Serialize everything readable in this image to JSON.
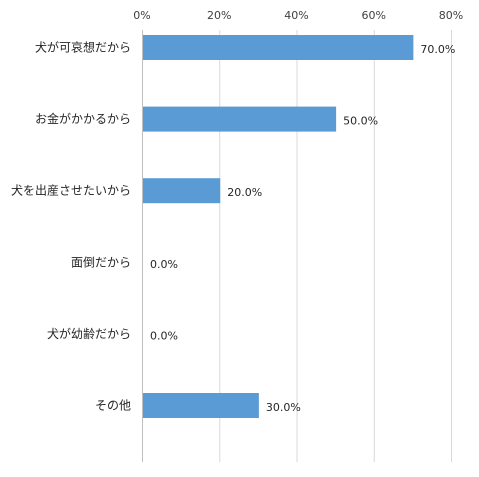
{
  "chart_data": {
    "type": "bar",
    "orientation": "horizontal",
    "categories": [
      "犬が可哀想だから",
      "お金がかかるから",
      "犬を出産させたいから",
      "面倒だから",
      "犬が幼齢だから",
      "その他"
    ],
    "values": [
      70.0,
      50.0,
      20.0,
      0.0,
      0.0,
      30.0
    ],
    "data_labels": [
      "70.0%",
      "50.0%",
      "20.0%",
      "0.0%",
      "0.0%",
      "30.0%"
    ],
    "xlim": [
      0,
      80
    ],
    "ticks": [
      0,
      20,
      40,
      60,
      80
    ],
    "tick_labels": [
      "0%",
      "20%",
      "40%",
      "60%",
      "80%"
    ],
    "x_axis_position": "top",
    "grid": true,
    "legend": "none",
    "bar_color": "#5b9bd5",
    "title": "",
    "xlabel": "",
    "ylabel": ""
  }
}
